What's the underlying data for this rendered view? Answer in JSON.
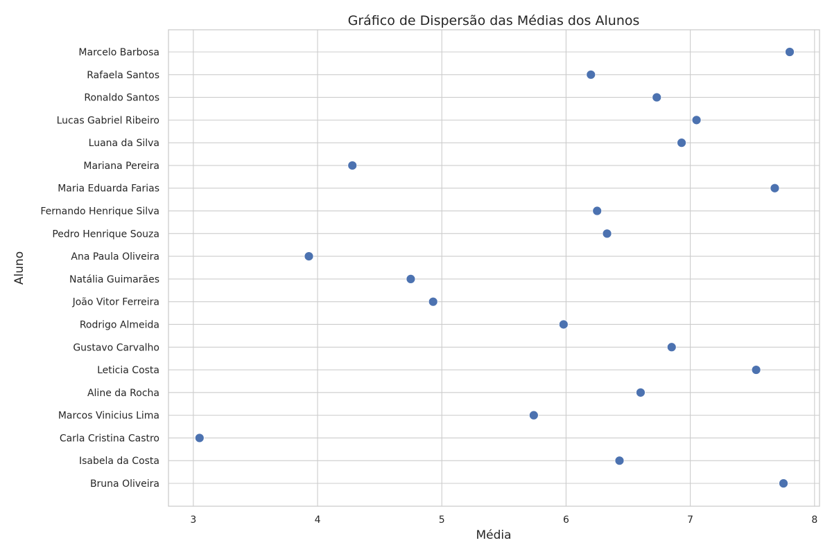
{
  "chart_data": {
    "type": "scatter",
    "title": "Gráfico de Dispersão das Médias dos Alunos",
    "xlabel": "Média",
    "ylabel": "Aluno",
    "xlim": [
      2.8,
      8.04
    ],
    "xticks": [
      3,
      4,
      5,
      6,
      7,
      8
    ],
    "grid": true,
    "color": "#4c72b0",
    "points": [
      {
        "name": "Marcelo Barbosa",
        "value": 7.8
      },
      {
        "name": "Rafaela Santos",
        "value": 6.2
      },
      {
        "name": "Ronaldo Santos",
        "value": 6.73
      },
      {
        "name": "Lucas Gabriel Ribeiro",
        "value": 7.05
      },
      {
        "name": "Luana da Silva",
        "value": 6.93
      },
      {
        "name": "Mariana Pereira",
        "value": 4.28
      },
      {
        "name": "Maria Eduarda Farias",
        "value": 7.68
      },
      {
        "name": "Fernando Henrique Silva",
        "value": 6.25
      },
      {
        "name": "Pedro Henrique Souza",
        "value": 6.33
      },
      {
        "name": "Ana Paula Oliveira",
        "value": 3.93
      },
      {
        "name": "Natália Guimarães",
        "value": 4.75
      },
      {
        "name": "João Vitor Ferreira",
        "value": 4.93
      },
      {
        "name": "Rodrigo Almeida",
        "value": 5.98
      },
      {
        "name": "Gustavo Carvalho",
        "value": 6.85
      },
      {
        "name": "Leticia Costa",
        "value": 7.53
      },
      {
        "name": "Aline da Rocha",
        "value": 6.6
      },
      {
        "name": "Marcos Vinicius Lima",
        "value": 5.74
      },
      {
        "name": "Carla Cristina Castro",
        "value": 3.05
      },
      {
        "name": "Isabela da Costa",
        "value": 6.43
      },
      {
        "name": "Bruna Oliveira",
        "value": 7.75
      }
    ]
  }
}
